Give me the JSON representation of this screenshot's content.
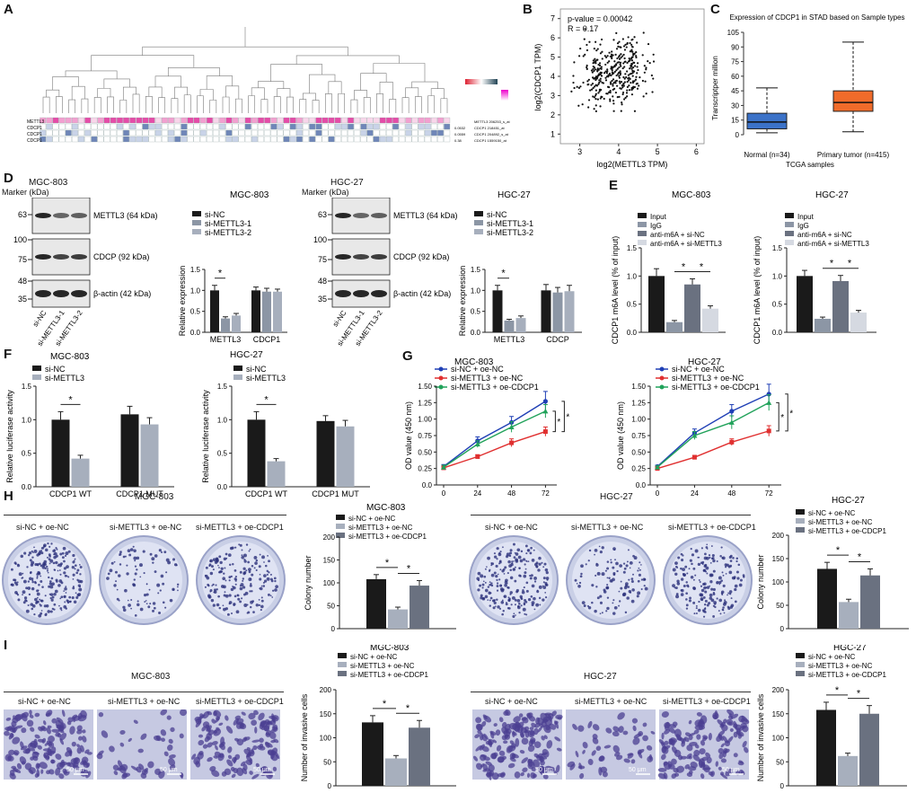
{
  "panels": {
    "A": {
      "label": "A",
      "row_labels": [
        "METTL3",
        "CDCP1",
        "CDCP1",
        "CDCP1"
      ],
      "right_labels": [
        "METTL3 206253_s_at",
        "CDCP1 218451_at",
        "CDCP1 204892_s_at",
        "CDCP1 1559150_at"
      ],
      "corr_values": [
        "",
        "0.0532",
        "0.0559",
        "0.38"
      ]
    },
    "B": {
      "label": "B",
      "pvalue": "p-value = 0.00042",
      "r": "R = 0.17",
      "xlabel": "log2(METTL3 TPM)",
      "ylabel": "log2(CDCP1 TPM)"
    },
    "C": {
      "label": "C",
      "title": "Expression of CDCP1 in STAD based on Sample types",
      "ylabel": "Transcriptper million",
      "xlabel": "TCGA samples",
      "groups": [
        "Normal (n=34)",
        "Primary tumor (n=415)"
      ]
    },
    "D": {
      "label": "D",
      "left_cell": "MGC-803",
      "right_cell": "HGC-27",
      "marker": "Marker (kDa)",
      "bands": [
        "METTL3 (64 kDa)",
        "CDCP (92 kDa)",
        "β-actin (42 kDa)"
      ],
      "lanes": [
        "si-NC",
        "si-METTL3-1",
        "si-METTL3-2"
      ],
      "mw_left": [
        "63",
        "100",
        "75",
        "48",
        "35"
      ]
    },
    "E": {
      "label": "E"
    },
    "F": {
      "label": "F"
    },
    "G": {
      "label": "G"
    },
    "H": {
      "label": "H",
      "left_cell": "MGC-803",
      "right_cell": "HGC-27",
      "groups": [
        "si-NC + oe-NC",
        "si-METTL3 + oe-NC",
        "si-METTL3 + oe-CDCP1"
      ]
    },
    "I": {
      "label": "I",
      "left_cell": "MGC-803",
      "right_cell": "HGC-27",
      "groups": [
        "si-NC + oe-NC",
        "si-METTL3 + oe-NC",
        "si-METTL3 + oe-CDCP1"
      ],
      "scale": "50 μm"
    }
  },
  "colors": {
    "black": "#1a1a1a",
    "grey1": "#8c96a5",
    "grey2": "#a7afbd",
    "grey3": "#d5d9e1",
    "dark_grey": "#6a7180",
    "blue": "#1f3fb5",
    "red": "#e03030",
    "green": "#21a25a",
    "box_blue": "#3b72c8",
    "box_orange": "#f06b2a"
  },
  "chart_data": [
    {
      "id": "B",
      "type": "scatter",
      "xlabel": "log2(METTL3 TPM)",
      "ylabel": "log2(CDCP1 TPM)",
      "xlim": [
        2.5,
        6.2
      ],
      "ylim": [
        0.5,
        7.5
      ],
      "xticks": [
        "3",
        "4",
        "5",
        "6"
      ],
      "yticks": [
        "1",
        "2",
        "3",
        "4",
        "5",
        "6",
        "7"
      ],
      "annotation": [
        "p-value = 0.00042",
        "R = 0.17"
      ]
    },
    {
      "id": "C",
      "type": "box",
      "title": "Expression of CDCP1 in STAD based on Sample types",
      "ylabel": "Transcriptper million",
      "xlabel": "TCGA samples",
      "categories": [
        "Normal (n=34)",
        "Primary tumor (n=415)"
      ],
      "yticks": [
        "0",
        "15",
        "30",
        "45",
        "60",
        "75",
        "90",
        "105"
      ],
      "ylim": [
        0,
        105
      ],
      "boxes": [
        {
          "min": 2,
          "q1": 6,
          "median": 13,
          "q3": 22,
          "max": 48,
          "color": "#3b72c8"
        },
        {
          "min": 3,
          "q1": 24,
          "median": 33,
          "q3": 45,
          "max": 95,
          "color": "#f06b2a"
        }
      ]
    },
    {
      "id": "D1",
      "type": "bar",
      "title": "MGC-803",
      "ylabel": "Relative expression",
      "categories": [
        "METTL3",
        "CDCP1"
      ],
      "ylim": [
        0,
        1.5
      ],
      "yticks": [
        "0.0",
        "0.5",
        "1.0",
        "1.5"
      ],
      "series": [
        {
          "name": "si-NC",
          "values": [
            1.0,
            1.0
          ],
          "err": [
            0.12,
            0.08
          ],
          "color": "#1a1a1a"
        },
        {
          "name": "si-METTL3-1",
          "values": [
            0.33,
            0.97
          ],
          "err": [
            0.04,
            0.08
          ],
          "color": "#8c96a5"
        },
        {
          "name": "si-METTL3-2",
          "values": [
            0.4,
            0.97
          ],
          "err": [
            0.05,
            0.06
          ],
          "color": "#a7afbd"
        }
      ],
      "sig": [
        "*"
      ]
    },
    {
      "id": "D2",
      "type": "bar",
      "title": "HGC-27",
      "ylabel": "Relative expression",
      "categories": [
        "METTL3",
        "CDCP"
      ],
      "ylim": [
        0,
        1.5
      ],
      "yticks": [
        "0.0",
        "0.5",
        "1.0",
        "1.5"
      ],
      "series": [
        {
          "name": "si-NC",
          "values": [
            1.0,
            1.0
          ],
          "err": [
            0.12,
            0.14
          ],
          "color": "#1a1a1a"
        },
        {
          "name": "si-METTL3-1",
          "values": [
            0.28,
            0.95
          ],
          "err": [
            0.03,
            0.12
          ],
          "color": "#8c96a5"
        },
        {
          "name": "si-METTL3-2",
          "values": [
            0.34,
            0.98
          ],
          "err": [
            0.05,
            0.14
          ],
          "color": "#a7afbd"
        }
      ],
      "sig": [
        "*"
      ]
    },
    {
      "id": "E1",
      "type": "bar",
      "title": "MGC-803",
      "ylabel": "CDCP1 m6A level (% of input)",
      "ylim": [
        0,
        1.5
      ],
      "yticks": [
        "0.0",
        "0.5",
        "1.0",
        "1.5"
      ],
      "series": [
        {
          "name": "Input",
          "values": [
            1.0
          ],
          "err": [
            0.13
          ],
          "color": "#1a1a1a"
        },
        {
          "name": "IgG",
          "values": [
            0.18
          ],
          "err": [
            0.03
          ],
          "color": "#8c96a5"
        },
        {
          "name": "anti-m6A + si-NC",
          "values": [
            0.85
          ],
          "err": [
            0.1
          ],
          "color": "#6a7180"
        },
        {
          "name": "anti-m6A + si-METTL3",
          "values": [
            0.42
          ],
          "err": [
            0.05
          ],
          "color": "#d5d9e1"
        }
      ],
      "sig": [
        "*",
        "*"
      ]
    },
    {
      "id": "E2",
      "type": "bar",
      "title": "HGC-27",
      "ylabel": "CDCP1 m6A level (% of input)",
      "ylim": [
        0,
        1.5
      ],
      "yticks": [
        "0.0",
        "0.5",
        "1.0",
        "1.5"
      ],
      "series": [
        {
          "name": "Input",
          "values": [
            1.0
          ],
          "err": [
            0.1
          ],
          "color": "#1a1a1a"
        },
        {
          "name": "IgG",
          "values": [
            0.24
          ],
          "err": [
            0.03
          ],
          "color": "#8c96a5"
        },
        {
          "name": "anti-m6A + si-NC",
          "values": [
            0.91
          ],
          "err": [
            0.1
          ],
          "color": "#6a7180"
        },
        {
          "name": "anti-m6A + si-METTL3",
          "values": [
            0.35
          ],
          "err": [
            0.04
          ],
          "color": "#d5d9e1"
        }
      ],
      "sig": [
        "*",
        "*"
      ]
    },
    {
      "id": "F1",
      "type": "bar",
      "title": "MGC-803",
      "ylabel": "Relative luciferase activity",
      "categories": [
        "CDCP1 WT",
        "CDCP1 MUT"
      ],
      "ylim": [
        0,
        1.5
      ],
      "yticks": [
        "0.0",
        "0.5",
        "1.0",
        "1.5"
      ],
      "series": [
        {
          "name": "si-NC",
          "values": [
            1.0,
            1.08
          ],
          "err": [
            0.12,
            0.12
          ],
          "color": "#1a1a1a"
        },
        {
          "name": "si-METTL3",
          "values": [
            0.42,
            0.93
          ],
          "err": [
            0.05,
            0.1
          ],
          "color": "#a7afbd"
        }
      ],
      "sig": [
        "*"
      ]
    },
    {
      "id": "F2",
      "type": "bar",
      "title": "HGC-27",
      "ylabel": "Relative luciferase activity",
      "categories": [
        "CDCP1 WT",
        "CDCP1 MUT"
      ],
      "ylim": [
        0,
        1.5
      ],
      "yticks": [
        "0.0",
        "0.5",
        "1.0",
        "1.5"
      ],
      "series": [
        {
          "name": "si-NC",
          "values": [
            1.0,
            0.98
          ],
          "err": [
            0.12,
            0.08
          ],
          "color": "#1a1a1a"
        },
        {
          "name": "si-METTL3",
          "values": [
            0.38,
            0.9
          ],
          "err": [
            0.04,
            0.09
          ],
          "color": "#a7afbd"
        }
      ],
      "sig": [
        "*"
      ]
    },
    {
      "id": "G1",
      "type": "line",
      "title": "MGC-803",
      "ylabel": "OD value (450 nm)",
      "x": [
        0,
        24,
        48,
        72
      ],
      "ylim": [
        0,
        1.5
      ],
      "yticks": [
        "0.0",
        "0.25",
        "0.50",
        "0.75",
        "1.00",
        "1.25",
        "1.50"
      ],
      "series": [
        {
          "name": "si-NC + oe-NC",
          "values": [
            0.28,
            0.67,
            0.95,
            1.27
          ],
          "err": [
            0.03,
            0.06,
            0.09,
            0.15
          ],
          "color": "#1f3fb5"
        },
        {
          "name": "si-METTL3 + oe-NC",
          "values": [
            0.26,
            0.43,
            0.64,
            0.81
          ],
          "err": [
            0.02,
            0.03,
            0.06,
            0.07
          ],
          "color": "#e03030"
        },
        {
          "name": "si-METTL3 + oe-CDCP1",
          "values": [
            0.27,
            0.62,
            0.88,
            1.12
          ],
          "err": [
            0.03,
            0.05,
            0.08,
            0.1
          ],
          "color": "#21a25a"
        }
      ],
      "sig": [
        "*",
        "*"
      ]
    },
    {
      "id": "G2",
      "type": "line",
      "title": "HGC-27",
      "ylabel": "OD value (450 nm)",
      "x": [
        0,
        24,
        48,
        72
      ],
      "ylim": [
        0,
        1.5
      ],
      "yticks": [
        "0.0",
        "0.25",
        "0.50",
        "0.75",
        "1.00",
        "1.25",
        "1.50"
      ],
      "series": [
        {
          "name": "si-NC + oe-NC",
          "values": [
            0.28,
            0.79,
            1.12,
            1.38
          ],
          "err": [
            0.02,
            0.06,
            0.1,
            0.15
          ],
          "color": "#1f3fb5"
        },
        {
          "name": "si-METTL3 + oe-NC",
          "values": [
            0.25,
            0.42,
            0.65,
            0.82
          ],
          "err": [
            0.02,
            0.03,
            0.05,
            0.08
          ],
          "color": "#e03030"
        },
        {
          "name": "si-METTL3 + oe-CDCP1",
          "values": [
            0.27,
            0.75,
            0.95,
            1.25
          ],
          "err": [
            0.02,
            0.06,
            0.1,
            0.12
          ],
          "color": "#21a25a"
        }
      ],
      "sig": [
        "*",
        "*"
      ]
    },
    {
      "id": "H1",
      "type": "bar",
      "title": "MGC-803",
      "ylabel": "Colony number",
      "ylim": [
        0,
        200
      ],
      "yticks": [
        "0",
        "50",
        "100",
        "150",
        "200"
      ],
      "series": [
        {
          "name": "si-NC + oe-NC",
          "values": [
            108
          ],
          "err": [
            10
          ],
          "color": "#1a1a1a"
        },
        {
          "name": "si-METTL3 + oe-NC",
          "values": [
            42
          ],
          "err": [
            5
          ],
          "color": "#a7afbd"
        },
        {
          "name": "si-METTL3 + oe-CDCP1",
          "values": [
            94
          ],
          "err": [
            11
          ],
          "color": "#6a7180"
        }
      ],
      "sig": [
        "*",
        "*"
      ]
    },
    {
      "id": "H2",
      "type": "bar",
      "title": "HGC-27",
      "ylabel": "Colony number",
      "ylim": [
        0,
        200
      ],
      "yticks": [
        "0",
        "50",
        "100",
        "150",
        "200"
      ],
      "series": [
        {
          "name": "si-NC + oe-NC",
          "values": [
            128
          ],
          "err": [
            14
          ],
          "color": "#1a1a1a"
        },
        {
          "name": "si-METTL3 + oe-NC",
          "values": [
            57
          ],
          "err": [
            6
          ],
          "color": "#a7afbd"
        },
        {
          "name": "si-METTL3 + oe-CDCP1",
          "values": [
            114
          ],
          "err": [
            14
          ],
          "color": "#6a7180"
        }
      ],
      "sig": [
        "*",
        "*"
      ]
    },
    {
      "id": "I1",
      "type": "bar",
      "title": "MGC-803",
      "ylabel": "Number of invasive cells",
      "ylim": [
        0,
        200
      ],
      "yticks": [
        "0",
        "50",
        "100",
        "150",
        "200"
      ],
      "series": [
        {
          "name": "si-NC + oe-NC",
          "values": [
            132
          ],
          "err": [
            14
          ],
          "color": "#1a1a1a"
        },
        {
          "name": "si-METTL3 + oe-NC",
          "values": [
            57
          ],
          "err": [
            6
          ],
          "color": "#a7afbd"
        },
        {
          "name": "si-METTL3 + oe-CDCP1",
          "values": [
            121
          ],
          "err": [
            15
          ],
          "color": "#6a7180"
        }
      ],
      "sig": [
        "*",
        "*"
      ]
    },
    {
      "id": "I2",
      "type": "bar",
      "title": "HGC-27",
      "ylabel": "Number of invasive cells",
      "ylim": [
        0,
        200
      ],
      "yticks": [
        "0",
        "50",
        "100",
        "150",
        "200"
      ],
      "series": [
        {
          "name": "si-NC + oe-NC",
          "values": [
            158
          ],
          "err": [
            16
          ],
          "color": "#1a1a1a"
        },
        {
          "name": "si-METTL3 + oe-NC",
          "values": [
            62
          ],
          "err": [
            6
          ],
          "color": "#a7afbd"
        },
        {
          "name": "si-METTL3 + oe-CDCP1",
          "values": [
            150
          ],
          "err": [
            17
          ],
          "color": "#6a7180"
        }
      ],
      "sig": [
        "*",
        "*"
      ]
    }
  ]
}
